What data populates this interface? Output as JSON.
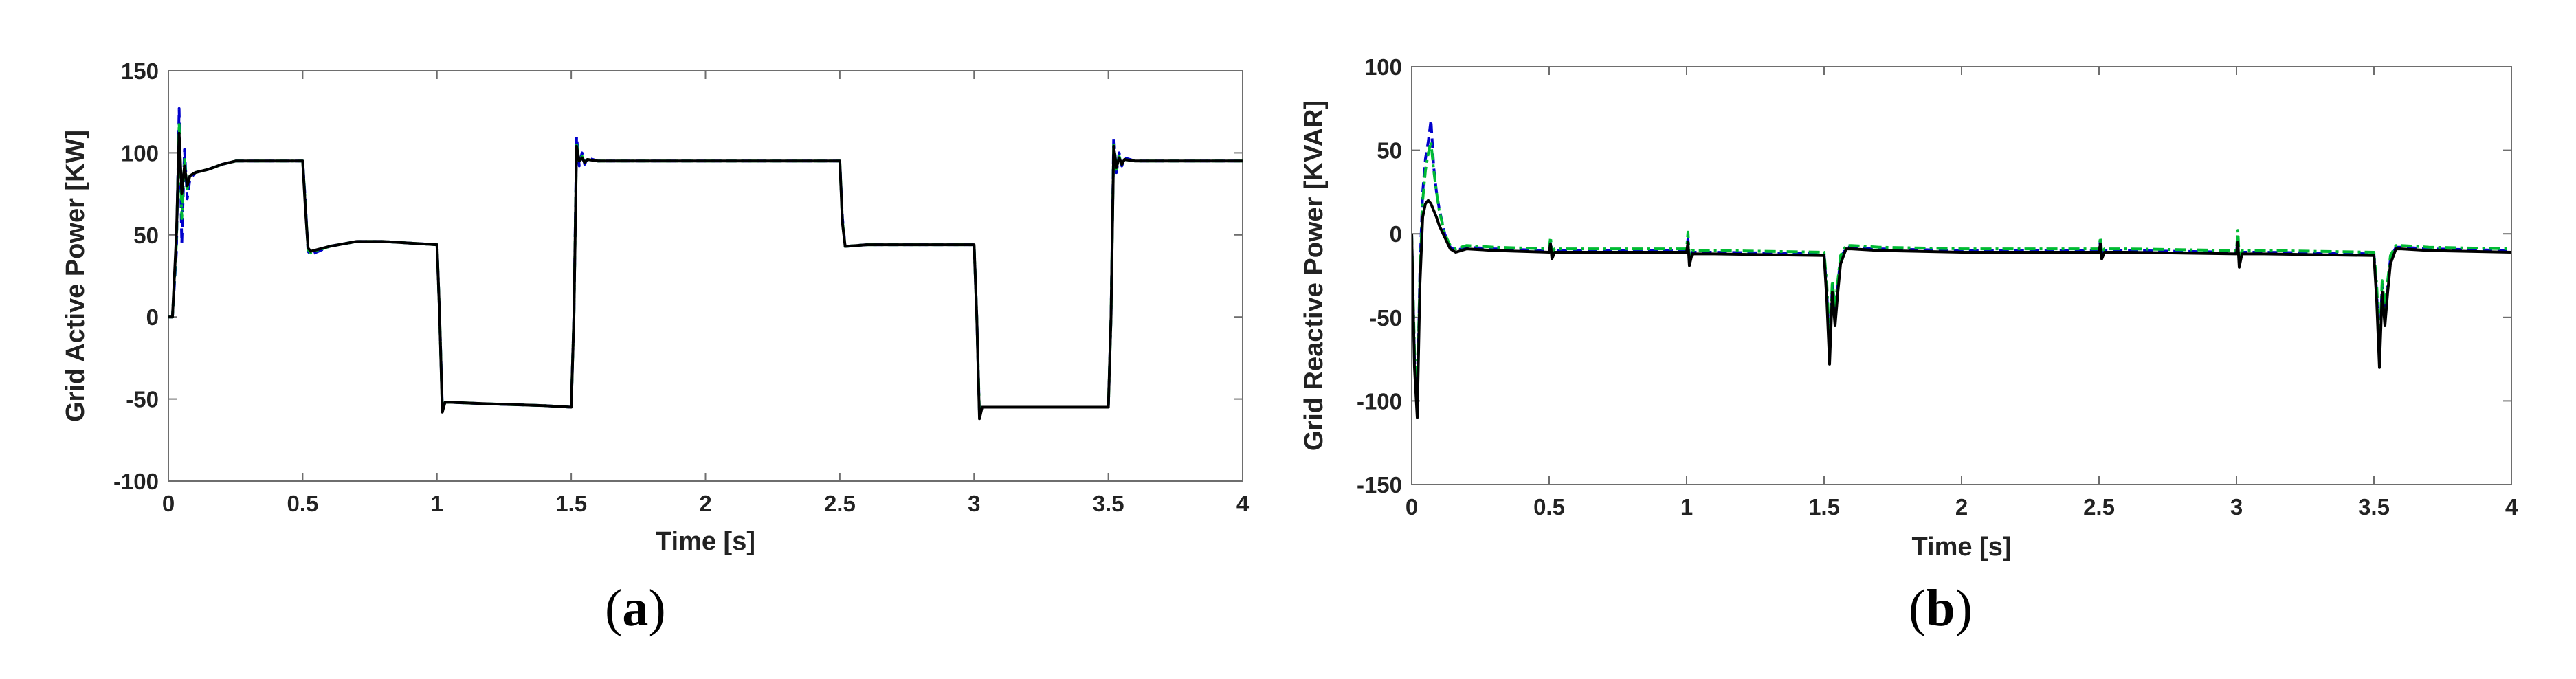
{
  "chart_data": [
    {
      "type": "line",
      "panel_label": "a",
      "xlabel": "Time [s]",
      "ylabel": "Grid Active Power [KW]",
      "xlim": [
        0,
        4
      ],
      "ylim": [
        -100,
        150
      ],
      "xticks": [
        0,
        0.5,
        1,
        1.5,
        2,
        2.5,
        3,
        3.5,
        4
      ],
      "yticks": [
        -100,
        -50,
        0,
        50,
        100,
        150
      ],
      "grid": false,
      "series": [
        {
          "color": "#0000cc",
          "style": "dashed",
          "x": [
            0,
            0.015,
            0.03,
            0.04,
            0.05,
            0.06,
            0.07,
            0.08,
            0.1,
            0.15,
            0.2,
            0.25,
            0.3,
            0.5,
            0.51,
            0.52,
            0.53,
            0.6,
            0.7,
            0.8,
            0.9,
            1.0,
            1.01,
            1.02,
            1.03,
            1.05,
            1.2,
            1.4,
            1.5,
            1.51,
            1.52,
            1.53,
            1.54,
            1.55,
            1.56,
            1.6,
            2.0,
            2.5,
            2.51,
            2.52,
            2.6,
            3.0,
            3.01,
            3.02,
            3.03,
            3.1,
            3.5,
            3.51,
            3.52,
            3.53,
            3.54,
            3.55,
            3.56,
            3.6,
            4.0
          ],
          "y": [
            0,
            0,
            40,
            127,
            45,
            102,
            72,
            84,
            88,
            90,
            93,
            95,
            95,
            95,
            70,
            40,
            38,
            43,
            46,
            46,
            45,
            44,
            0,
            -55,
            -52,
            -52,
            -53,
            -54,
            -55,
            0,
            110,
            92,
            100,
            93,
            97,
            95,
            95,
            95,
            60,
            43,
            44,
            44,
            0,
            -60,
            -55,
            -55,
            -55,
            0,
            110,
            88,
            100,
            92,
            97,
            95,
            95
          ]
        },
        {
          "color": "#00bb33",
          "style": "dash-dot",
          "x": [
            0,
            0.015,
            0.03,
            0.04,
            0.05,
            0.06,
            0.07,
            0.08,
            0.1,
            0.15,
            0.2,
            0.25,
            0.3,
            0.5,
            0.51,
            0.52,
            0.53,
            0.6,
            0.7,
            0.8,
            0.9,
            1.0,
            1.01,
            1.02,
            1.03,
            1.05,
            1.2,
            1.4,
            1.5,
            1.51,
            1.52,
            1.53,
            1.54,
            1.55,
            1.56,
            1.6,
            2.0,
            2.5,
            2.51,
            2.52,
            2.6,
            3.0,
            3.01,
            3.02,
            3.03,
            3.1,
            3.5,
            3.51,
            3.52,
            3.53,
            3.54,
            3.55,
            3.56,
            3.6,
            4.0
          ],
          "y": [
            0,
            0,
            45,
            118,
            60,
            96,
            78,
            86,
            88,
            90,
            93,
            95,
            95,
            95,
            68,
            41,
            39,
            43,
            46,
            46,
            45,
            44,
            0,
            -57,
            -52,
            -52,
            -53,
            -54,
            -55,
            0,
            106,
            94,
            98,
            94,
            96,
            95,
            95,
            95,
            58,
            43,
            44,
            44,
            0,
            -58,
            -55,
            -55,
            -55,
            0,
            106,
            90,
            98,
            93,
            96,
            95,
            95
          ]
        },
        {
          "color": "#000000",
          "style": "solid",
          "x": [
            0,
            0.015,
            0.03,
            0.04,
            0.05,
            0.06,
            0.07,
            0.08,
            0.1,
            0.15,
            0.2,
            0.25,
            0.3,
            0.5,
            0.51,
            0.52,
            0.53,
            0.6,
            0.7,
            0.8,
            0.9,
            1.0,
            1.01,
            1.02,
            1.03,
            1.05,
            1.2,
            1.4,
            1.5,
            1.51,
            1.52,
            1.53,
            1.54,
            1.55,
            1.56,
            1.6,
            2.0,
            2.5,
            2.51,
            2.52,
            2.6,
            3.0,
            3.01,
            3.02,
            3.03,
            3.1,
            3.5,
            3.51,
            3.52,
            3.53,
            3.54,
            3.55,
            3.56,
            3.6,
            4.0
          ],
          "y": [
            0,
            0,
            50,
            112,
            75,
            92,
            80,
            86,
            88,
            90,
            93,
            95,
            95,
            95,
            66,
            42,
            40,
            43,
            46,
            46,
            45,
            44,
            0,
            -58,
            -52,
            -52,
            -53,
            -54,
            -55,
            0,
            104,
            95,
            97,
            94,
            96,
            95,
            95,
            95,
            57,
            43,
            44,
            44,
            0,
            -62,
            -55,
            -55,
            -55,
            0,
            104,
            91,
            97,
            93,
            96,
            95,
            95
          ]
        }
      ]
    },
    {
      "type": "line",
      "panel_label": "b",
      "xlabel": "Time [s]",
      "ylabel": "Grid Reactive Power [KVAR]",
      "xlim": [
        0,
        4
      ],
      "ylim": [
        -150,
        100
      ],
      "xticks": [
        0,
        0.5,
        1,
        1.5,
        2,
        2.5,
        3,
        3.5,
        4
      ],
      "yticks": [
        -150,
        -100,
        -50,
        0,
        50,
        100
      ],
      "grid": false,
      "series": [
        {
          "color": "#0000cc",
          "style": "dashed",
          "x": [
            0,
            0.01,
            0.02,
            0.03,
            0.04,
            0.05,
            0.06,
            0.07,
            0.08,
            0.09,
            0.1,
            0.12,
            0.14,
            0.16,
            0.2,
            0.3,
            0.5,
            0.505,
            0.51,
            0.52,
            0.6,
            1.0,
            1.005,
            1.01,
            1.02,
            1.1,
            1.5,
            1.51,
            1.52,
            1.53,
            1.54,
            1.55,
            1.56,
            1.58,
            1.6,
            1.7,
            2.0,
            2.5,
            2.505,
            2.51,
            2.52,
            2.6,
            3.0,
            3.005,
            3.01,
            3.02,
            3.1,
            3.5,
            3.51,
            3.52,
            3.53,
            3.54,
            3.55,
            3.56,
            3.58,
            3.6,
            3.7,
            4.0
          ],
          "y": [
            0,
            -75,
            -105,
            -20,
            25,
            45,
            55,
            68,
            40,
            25,
            15,
            0,
            -8,
            -10,
            -8,
            -9,
            -10,
            -4,
            -12,
            -10,
            -10,
            -10,
            -3,
            -16,
            -11,
            -11,
            -12,
            -35,
            -70,
            -30,
            -50,
            -30,
            -15,
            -8,
            -8,
            -9,
            -10,
            -10,
            -4,
            -12,
            -10,
            -10,
            -11,
            -3,
            -17,
            -11,
            -11,
            -12,
            -35,
            -72,
            -30,
            -50,
            -30,
            -15,
            -8,
            -8,
            -9,
            -10
          ]
        },
        {
          "color": "#00bb33",
          "style": "dash-dot",
          "x": [
            0,
            0.01,
            0.02,
            0.03,
            0.04,
            0.05,
            0.06,
            0.07,
            0.08,
            0.09,
            0.1,
            0.12,
            0.14,
            0.16,
            0.2,
            0.3,
            0.5,
            0.505,
            0.51,
            0.52,
            0.6,
            1.0,
            1.005,
            1.01,
            1.02,
            1.1,
            1.5,
            1.51,
            1.52,
            1.53,
            1.54,
            1.55,
            1.56,
            1.58,
            1.6,
            1.7,
            2.0,
            2.5,
            2.505,
            2.51,
            2.52,
            2.6,
            3.0,
            3.005,
            3.01,
            3.02,
            3.1,
            3.5,
            3.51,
            3.52,
            3.53,
            3.54,
            3.55,
            3.56,
            3.58,
            3.6,
            3.7,
            4.0
          ],
          "y": [
            0,
            -70,
            -95,
            -25,
            20,
            38,
            48,
            55,
            38,
            25,
            14,
            0,
            -7,
            -9,
            -7,
            -8,
            -9,
            -2,
            -11,
            -9,
            -9,
            -9,
            1,
            -14,
            -10,
            -10,
            -11,
            -30,
            -65,
            -28,
            -45,
            -28,
            -13,
            -7,
            -7,
            -8,
            -9,
            -9,
            -2,
            -11,
            -9,
            -9,
            -10,
            2,
            -15,
            -10,
            -10,
            -11,
            -30,
            -66,
            -28,
            -45,
            -28,
            -13,
            -7,
            -7,
            -8,
            -9
          ]
        },
        {
          "color": "#000000",
          "style": "solid",
          "x": [
            0,
            0.01,
            0.02,
            0.03,
            0.04,
            0.05,
            0.06,
            0.07,
            0.08,
            0.09,
            0.1,
            0.12,
            0.14,
            0.16,
            0.2,
            0.3,
            0.5,
            0.505,
            0.51,
            0.52,
            0.6,
            1.0,
            1.005,
            1.01,
            1.02,
            1.1,
            1.5,
            1.51,
            1.52,
            1.53,
            1.54,
            1.55,
            1.56,
            1.58,
            1.6,
            1.7,
            2.0,
            2.5,
            2.505,
            2.51,
            2.52,
            2.6,
            3.0,
            3.005,
            3.01,
            3.02,
            3.1,
            3.5,
            3.51,
            3.52,
            3.53,
            3.54,
            3.55,
            3.56,
            3.58,
            3.6,
            3.7,
            4.0
          ],
          "y": [
            0,
            -80,
            -110,
            -30,
            10,
            18,
            20,
            18,
            14,
            10,
            5,
            -2,
            -9,
            -11,
            -9,
            -10,
            -11,
            -6,
            -15,
            -11,
            -11,
            -11,
            -5,
            -19,
            -12,
            -12,
            -13,
            -40,
            -78,
            -35,
            -55,
            -35,
            -18,
            -9,
            -9,
            -10,
            -11,
            -11,
            -6,
            -15,
            -11,
            -11,
            -12,
            -5,
            -20,
            -12,
            -12,
            -13,
            -40,
            -80,
            -35,
            -55,
            -35,
            -18,
            -9,
            -9,
            -10,
            -11
          ]
        }
      ]
    }
  ]
}
